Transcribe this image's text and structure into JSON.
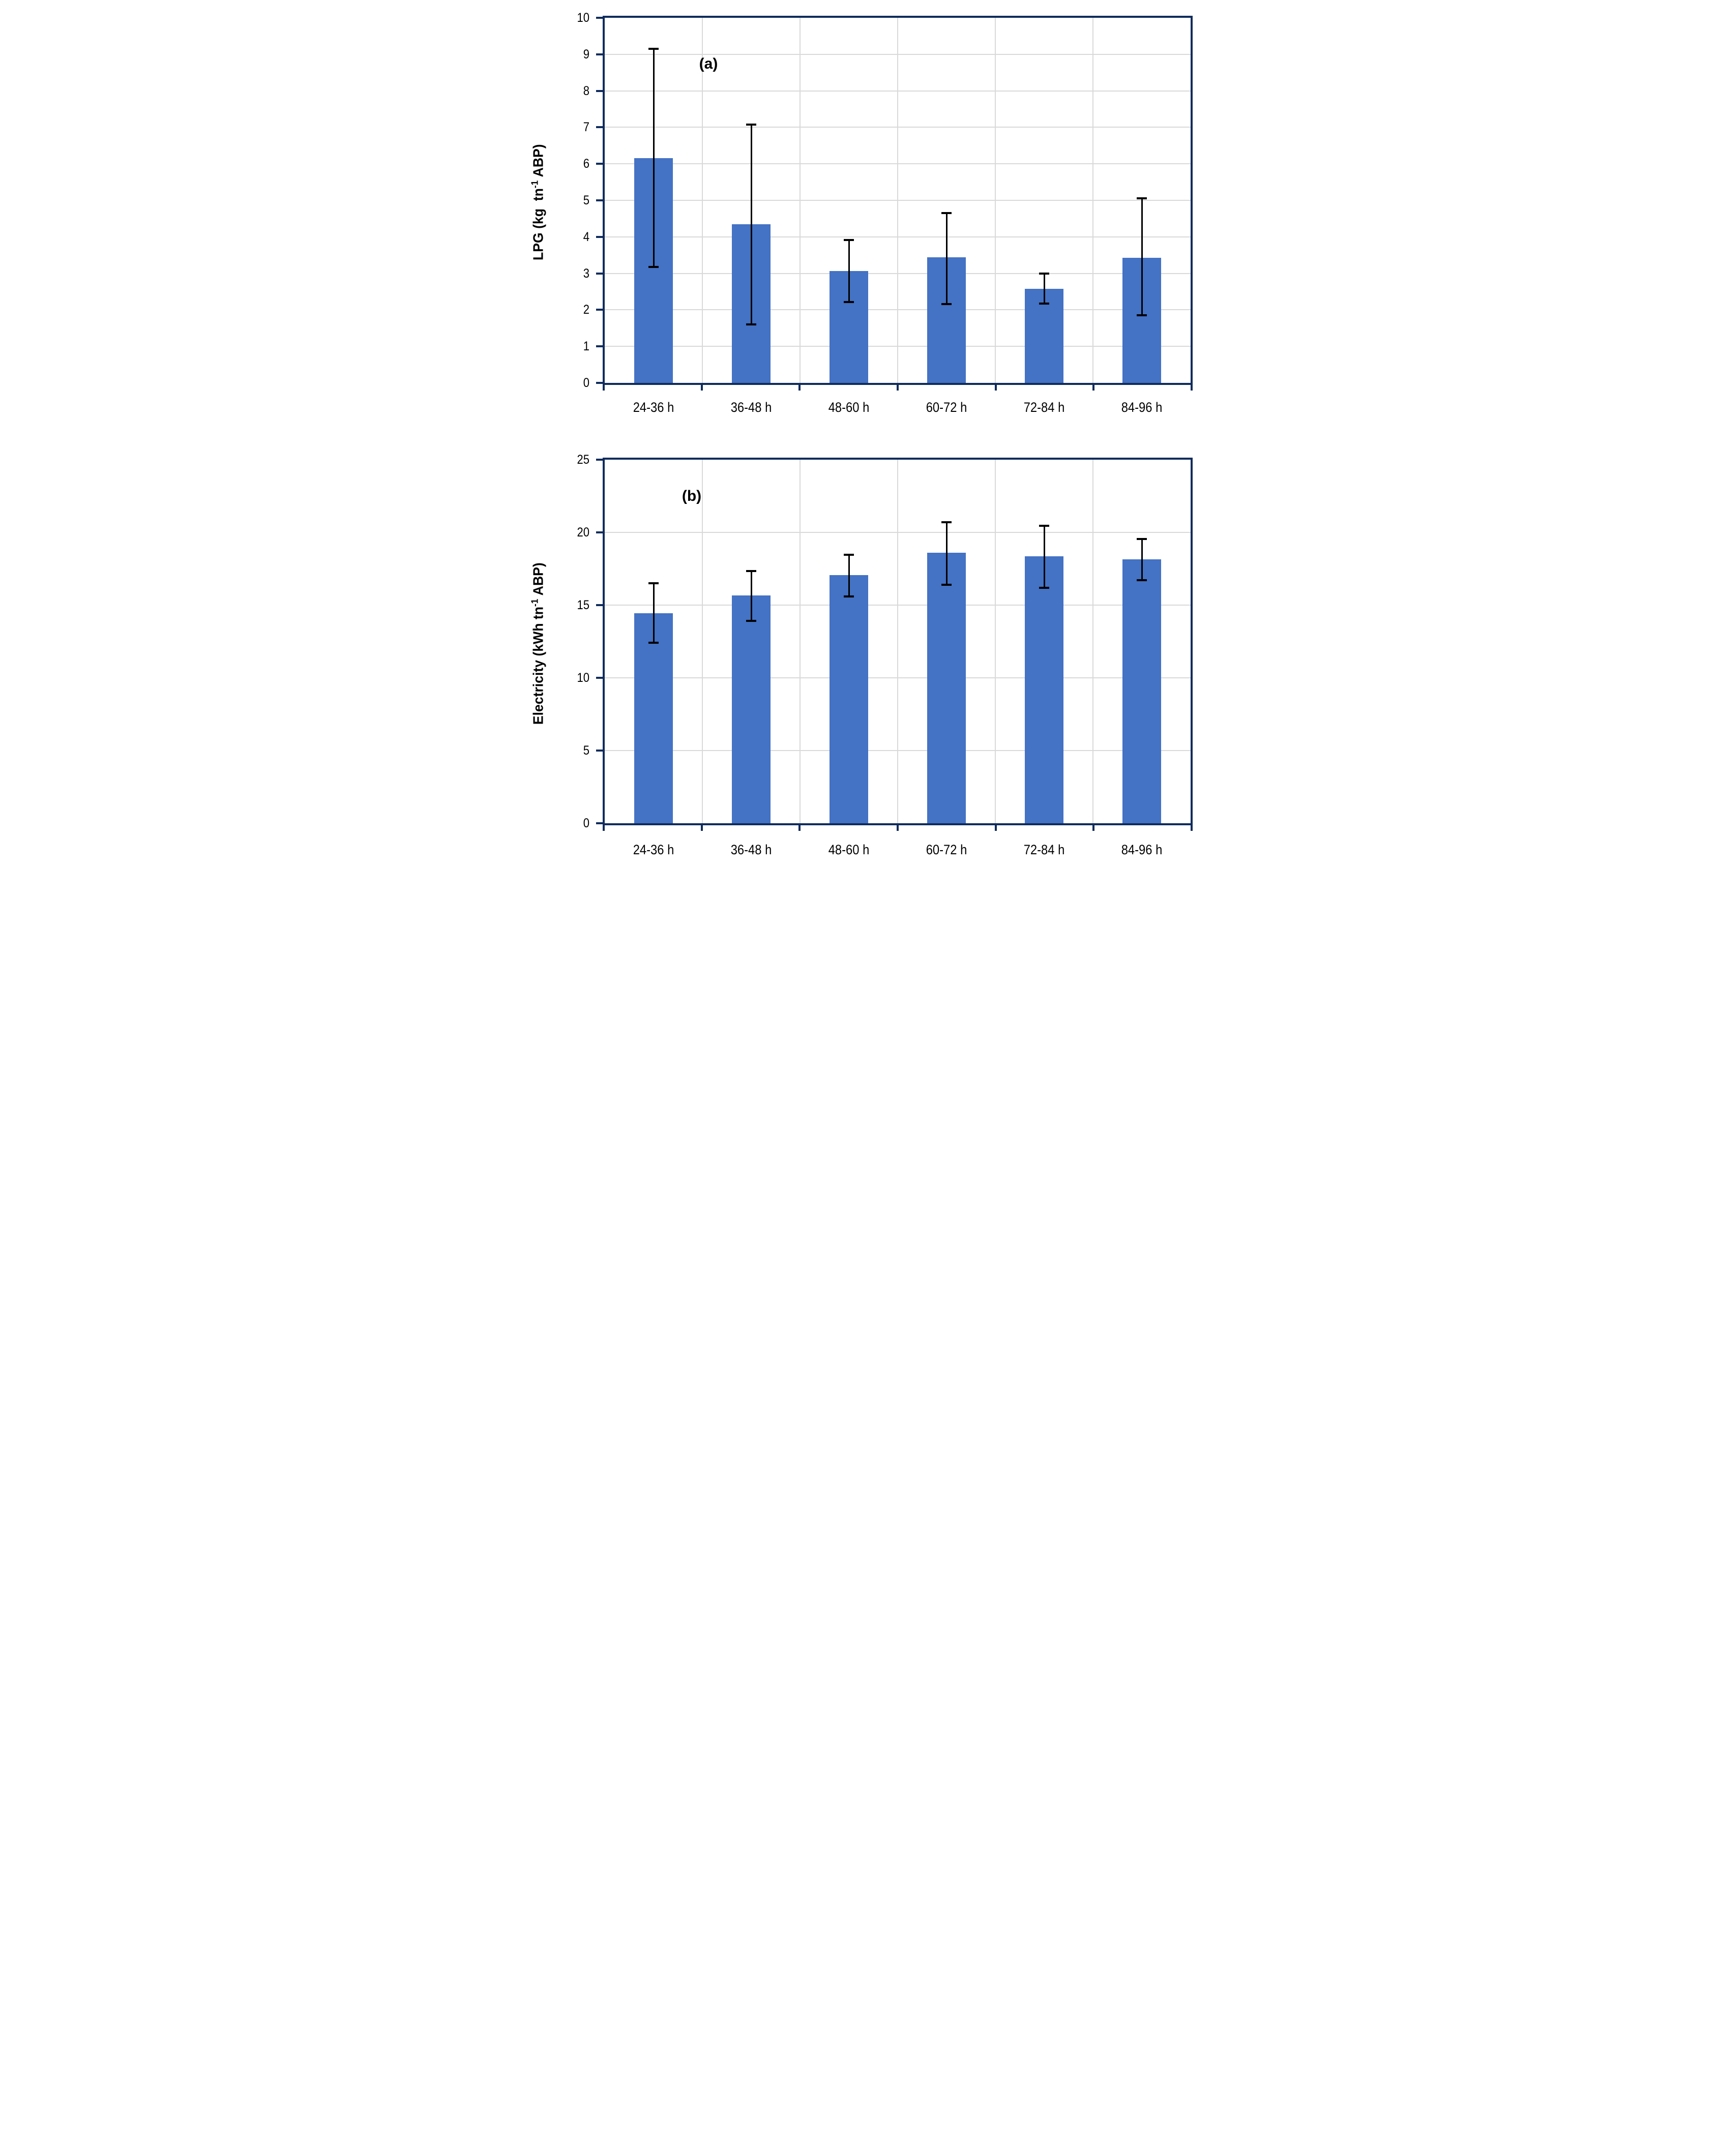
{
  "figure_type": "two-panel vertical bar chart with error bars",
  "chart_data": [
    {
      "type": "bar",
      "panel_label": "(a)",
      "ylabel": "LPG (kg tn-1 ABP)",
      "ylabel_parts": {
        "pre": "LPG (kg  tn",
        "sup": "-1",
        "post": " ABP)"
      },
      "xlabel": "",
      "categories": [
        "24-36 h",
        "36-48 h",
        "48-60 h",
        "60-72 h",
        "72-84 h",
        "84-96 h"
      ],
      "values": [
        6.16,
        4.35,
        3.07,
        3.44,
        2.58,
        3.43
      ],
      "error_upper": [
        9.15,
        7.08,
        3.92,
        4.65,
        2.99,
        5.05
      ],
      "error_lower": [
        3.17,
        1.6,
        2.21,
        2.16,
        2.17,
        1.85
      ],
      "ylim": [
        0,
        10
      ],
      "yticks": [
        0,
        1,
        2,
        3,
        4,
        5,
        6,
        7,
        8,
        9,
        10
      ],
      "grid": "horizontal major + vertical category boundaries",
      "legend": "none"
    },
    {
      "type": "bar",
      "panel_label": "(b)",
      "ylabel": "Electricity (kWh tn-1 ABP)",
      "ylabel_parts": {
        "pre": "Electricity (kWh tn",
        "sup": "-1",
        "post": " ABP)"
      },
      "xlabel": "",
      "categories": [
        "24-36 h",
        "36-48 h",
        "48-60 h",
        "60-72 h",
        "72-84 h",
        "84-96 h"
      ],
      "values": [
        14.45,
        15.65,
        17.05,
        18.6,
        18.35,
        18.15
      ],
      "error_upper": [
        16.5,
        17.35,
        18.45,
        20.7,
        20.45,
        19.55
      ],
      "error_lower": [
        12.4,
        13.9,
        15.6,
        16.4,
        16.2,
        16.7
      ],
      "ylim": [
        0,
        25
      ],
      "yticks": [
        0,
        5,
        10,
        15,
        20,
        25
      ],
      "grid": "horizontal major + vertical category boundaries",
      "legend": "none"
    }
  ],
  "colors": {
    "bar_fill": "#4472C4",
    "axis": "#0F2C5C",
    "gridline": "#D9D9D9",
    "error_bar": "#000000",
    "text": "#000000",
    "background": "#FFFFFF"
  }
}
